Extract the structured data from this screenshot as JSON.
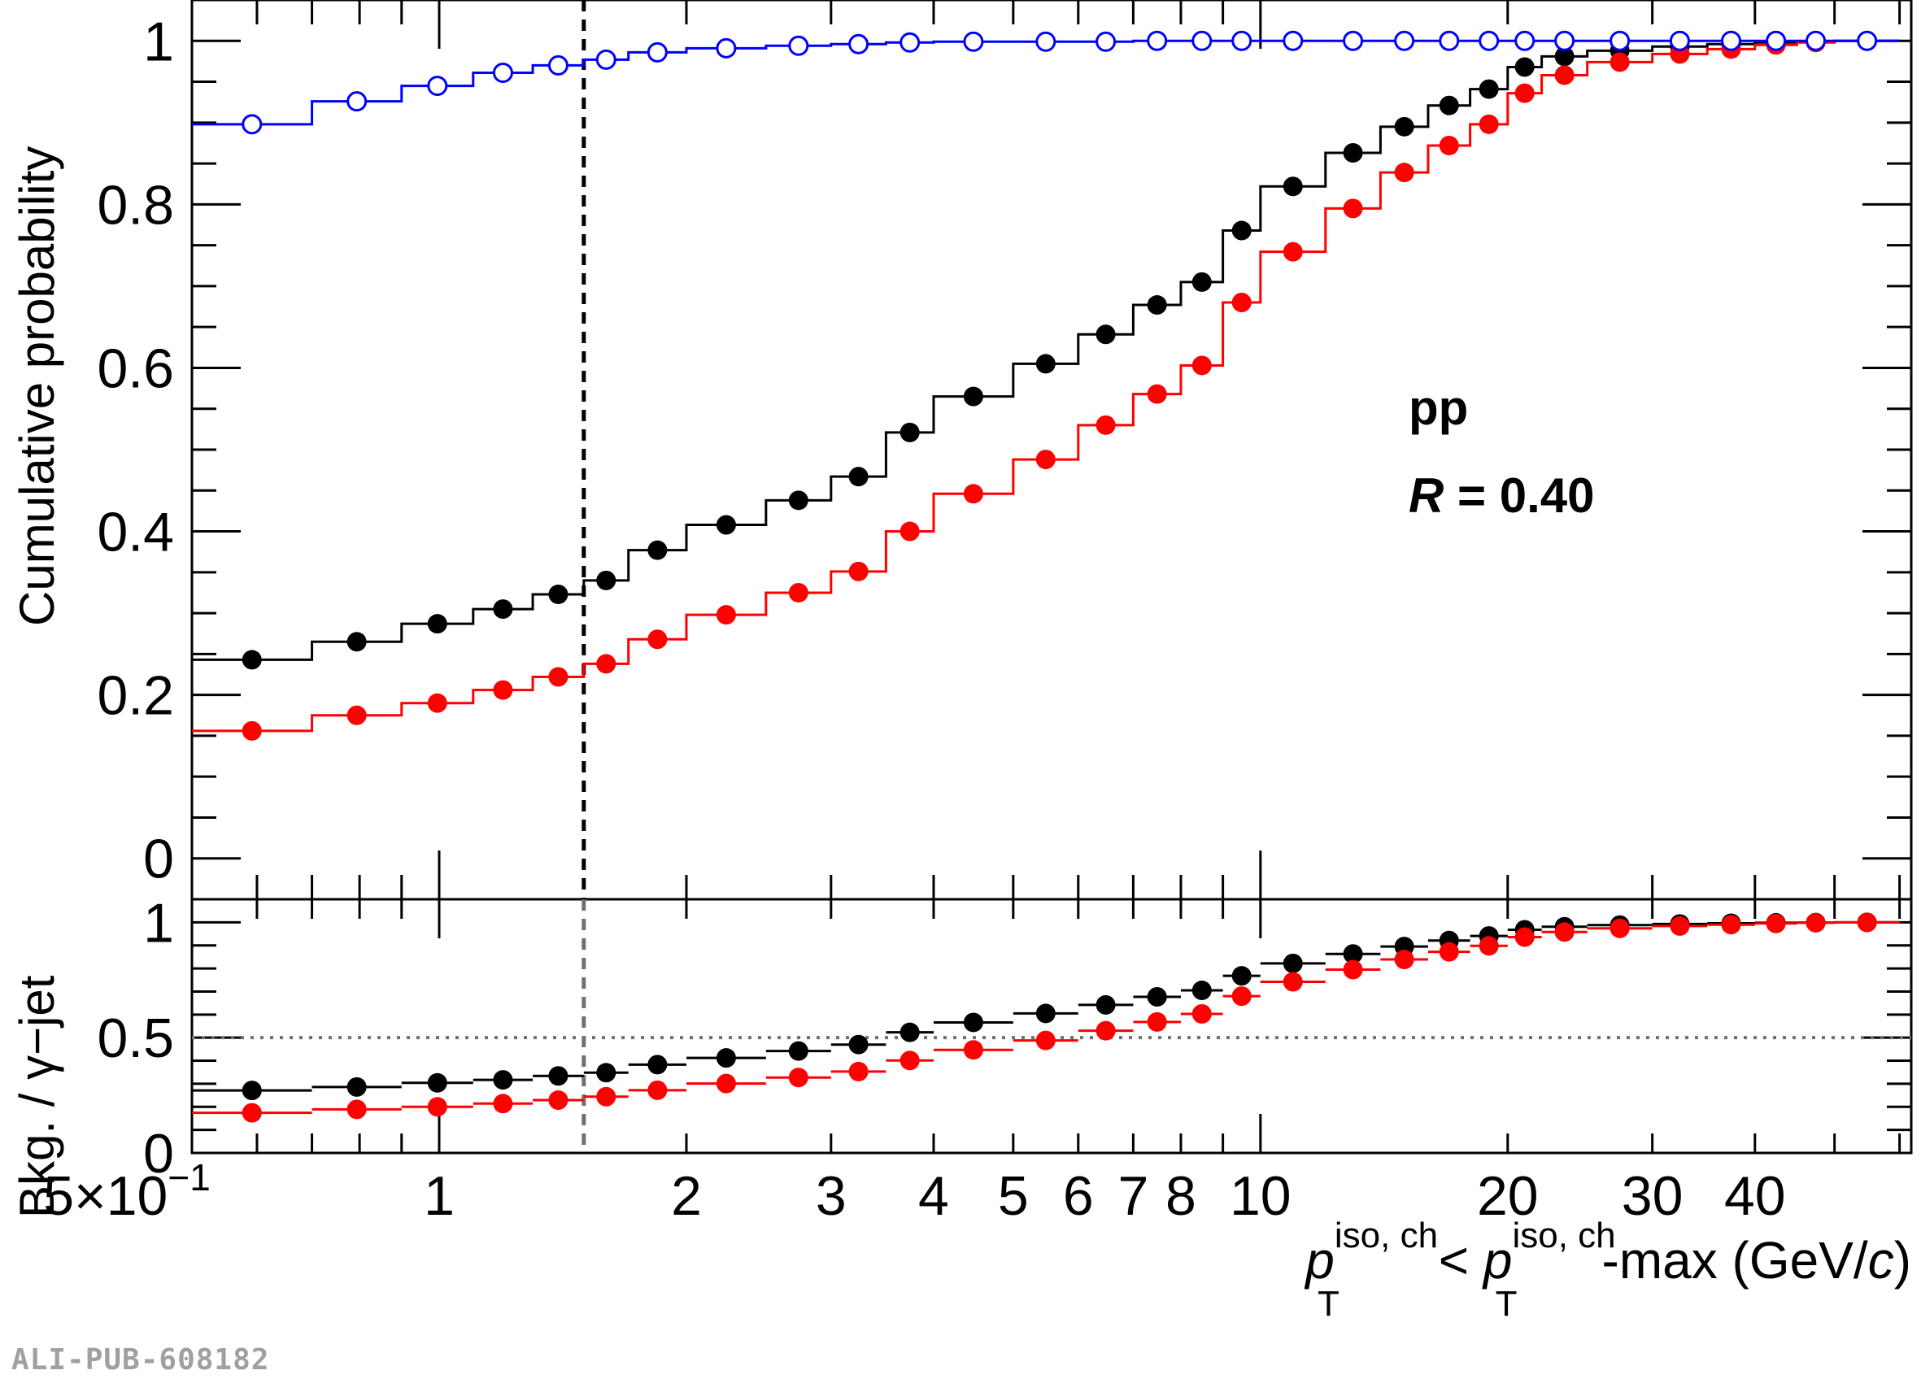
{
  "colors": {
    "black": "#000000",
    "red": "#ff0000",
    "blue": "#0000ff",
    "ratio_ref": "#707070"
  },
  "watermark": "ALI-PUB-608182",
  "chart_data": [
    {
      "type": "line",
      "panel": "top",
      "ylabel": "Cumulative probability",
      "xscale": "log",
      "xlim": [
        0.5,
        62
      ],
      "ylim": [
        -0.05,
        1.05
      ],
      "yticks": [
        "0",
        "0.2",
        "0.4",
        "0.6",
        "0.8",
        "1"
      ],
      "annotations": {
        "system": "pp",
        "radius_symbol": "R",
        "radius_value": " = 0.40"
      },
      "vertical_line_x": 1.5,
      "bin_edges": [
        0.5,
        0.7,
        0.9,
        1.1,
        1.3,
        1.5,
        1.7,
        2.0,
        2.5,
        3.0,
        3.5,
        4.0,
        5.0,
        6.0,
        7.0,
        8.0,
        9.0,
        10.0,
        12.0,
        14.0,
        16.0,
        18.0,
        20.0,
        22.0,
        25.0,
        30.0,
        35.0,
        40.0,
        45.0,
        50.0,
        60.0
      ],
      "series": [
        {
          "color": "black",
          "marker": "filled",
          "values": [
            0.243,
            0.265,
            0.287,
            0.305,
            0.323,
            0.34,
            0.377,
            0.408,
            0.438,
            0.467,
            0.521,
            0.565,
            0.605,
            0.641,
            0.677,
            0.705,
            0.768,
            0.822,
            0.863,
            0.895,
            0.921,
            0.941,
            0.968,
            0.981,
            0.988,
            0.993,
            0.996,
            0.998,
            0.999,
            1.0
          ]
        },
        {
          "color": "red",
          "marker": "filled",
          "values": [
            0.156,
            0.175,
            0.19,
            0.206,
            0.222,
            0.238,
            0.268,
            0.298,
            0.325,
            0.351,
            0.4,
            0.446,
            0.488,
            0.53,
            0.568,
            0.603,
            0.68,
            0.742,
            0.795,
            0.839,
            0.872,
            0.898,
            0.936,
            0.958,
            0.974,
            0.984,
            0.99,
            0.995,
            0.998,
            1.0
          ]
        },
        {
          "color": "blue",
          "marker": "open",
          "values": [
            0.898,
            0.926,
            0.945,
            0.961,
            0.97,
            0.977,
            0.986,
            0.991,
            0.994,
            0.996,
            0.998,
            0.999,
            0.999,
            0.999,
            1.0,
            1.0,
            1.0,
            1.0,
            1.0,
            1.0,
            1.0,
            1.0,
            1.0,
            1.0,
            1.0,
            1.0,
            1.0,
            1.0,
            1.0,
            1.0
          ]
        }
      ]
    },
    {
      "type": "line",
      "panel": "bottom",
      "ylabel": "Bkg. / γ−jet",
      "xlabel": {
        "p": "p",
        "sup": "iso, ch",
        "sub": "T",
        "mid": " < ",
        "suffix": "-max (GeV/",
        "c": "c",
        "close": ")"
      },
      "xscale": "log",
      "xlim": [
        0.5,
        62
      ],
      "ylim": [
        0,
        1.1
      ],
      "yticks": [
        "0",
        "0.5",
        "1"
      ],
      "xticks": [
        {
          "value": 0.5,
          "label": "5×10",
          "exp": "−1"
        },
        {
          "value": 1,
          "label": "1"
        },
        {
          "value": 2,
          "label": "2"
        },
        {
          "value": 3,
          "label": "3"
        },
        {
          "value": 4,
          "label": "4"
        },
        {
          "value": 5,
          "label": "5"
        },
        {
          "value": 6,
          "label": "6"
        },
        {
          "value": 7,
          "label": "7"
        },
        {
          "value": 8,
          "label": "8"
        },
        {
          "value": 10,
          "label": "10"
        },
        {
          "value": 20,
          "label": "20"
        },
        {
          "value": 30,
          "label": "30"
        },
        {
          "value": 40,
          "label": "40"
        }
      ],
      "reference_line_y": 0.5,
      "vertical_line_x": 1.5,
      "series": [
        {
          "color": "black",
          "values": [
            0.271,
            0.286,
            0.304,
            0.317,
            0.334,
            0.348,
            0.383,
            0.412,
            0.442,
            0.47,
            0.523,
            0.566,
            0.605,
            0.642,
            0.677,
            0.705,
            0.768,
            0.822,
            0.863,
            0.895,
            0.921,
            0.941,
            0.968,
            0.981,
            0.988,
            0.993,
            0.996,
            0.998,
            0.999,
            1.0
          ]
        },
        {
          "color": "red",
          "values": [
            0.174,
            0.189,
            0.2,
            0.214,
            0.229,
            0.244,
            0.272,
            0.301,
            0.327,
            0.353,
            0.401,
            0.447,
            0.488,
            0.53,
            0.568,
            0.603,
            0.68,
            0.742,
            0.795,
            0.839,
            0.872,
            0.898,
            0.936,
            0.958,
            0.974,
            0.984,
            0.99,
            0.995,
            0.998,
            1.0
          ]
        }
      ]
    }
  ]
}
